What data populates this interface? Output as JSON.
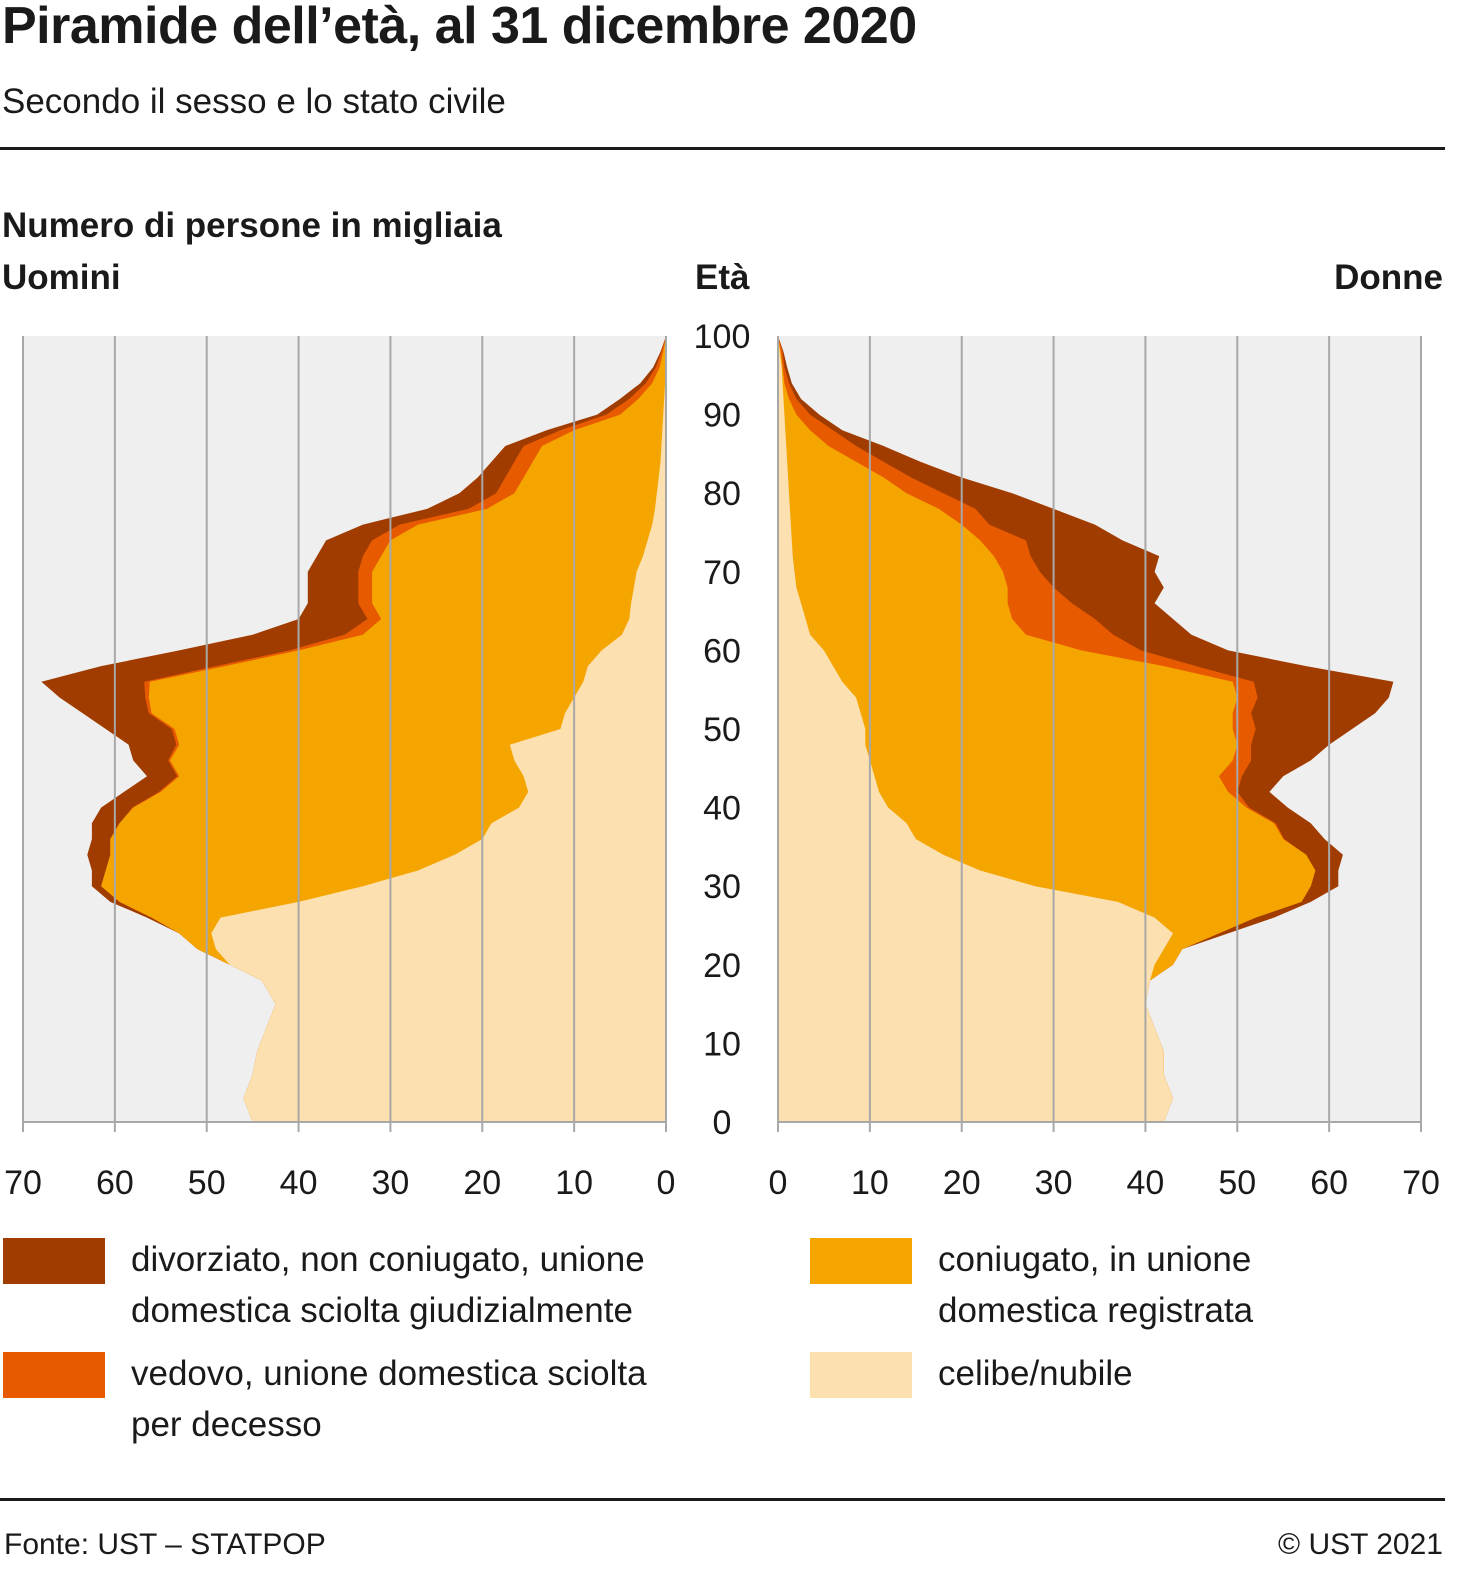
{
  "header": {
    "title": "Piramide dell’età, al 31 dicembre 2020",
    "subtitle": "Secondo il sesso e lo stato civile"
  },
  "labels": {
    "unit": "Numero di persone in migliaia",
    "left_side": "Uomini",
    "right_side": "Donne",
    "age_axis": "Età"
  },
  "footer": {
    "source": "Fonte: UST – STATPOP",
    "copyright": "© UST 2021"
  },
  "colors": {
    "divorced": "#a03c00",
    "widowed": "#e85a00",
    "married": "#f5a500",
    "single": "#fde0b0",
    "plot_bg": "#efefef",
    "grid": "#a8a8a8"
  },
  "legend": [
    {
      "key": "divorced",
      "label": "divorziato, non coniugato, unione domestica sciolta giudizialmente"
    },
    {
      "key": "widowed",
      "label": "vedovo, unione domestica sciolta per decesso"
    },
    {
      "key": "married",
      "label": "coniugato, in unione domestica registrata"
    },
    {
      "key": "single",
      "label": "celibe/nubile"
    }
  ],
  "chart_data": {
    "type": "area",
    "title": "Piramide dell’età, al 31 dicembre 2020",
    "subtitle": "Secondo il sesso e lo stato civile",
    "xlabel": "Numero di persone in migliaia",
    "ylabel": "Età",
    "xlim": [
      0,
      70
    ],
    "ylim": [
      0,
      100
    ],
    "x_ticks": [
      0,
      10,
      20,
      30,
      40,
      50,
      60,
      70
    ],
    "y_ticks": [
      0,
      10,
      20,
      30,
      40,
      50,
      60,
      70,
      80,
      90,
      100
    ],
    "ages": [
      0,
      3,
      6,
      9,
      12,
      15,
      18,
      20,
      22,
      24,
      26,
      28,
      30,
      32,
      34,
      36,
      38,
      40,
      42,
      44,
      46,
      48,
      50,
      52,
      54,
      56,
      58,
      60,
      62,
      64,
      66,
      68,
      70,
      72,
      74,
      76,
      78,
      80,
      82,
      84,
      86,
      88,
      90,
      92,
      94,
      96,
      98,
      100
    ],
    "series_order": [
      "single",
      "married",
      "widowed",
      "divorced"
    ],
    "panels": [
      {
        "name": "Uomini",
        "cumulative": {
          "single": [
            45,
            46,
            45,
            44.5,
            43.5,
            42.5,
            44,
            47.5,
            49,
            49.5,
            48.5,
            40,
            33,
            27,
            23,
            20,
            19,
            16,
            15,
            15.5,
            16.5,
            17,
            11.5,
            11,
            10,
            9,
            8.5,
            7,
            4.8,
            4,
            3.8,
            3.5,
            3.2,
            2.5,
            2,
            1.5,
            1.2,
            1,
            0.8,
            0.6,
            0.5,
            0.4,
            0.3,
            0.2,
            0.1,
            0.05,
            0.02,
            0
          ],
          "married": [
            45,
            46,
            45,
            44.5,
            43.5,
            42.5,
            44,
            47.5,
            51,
            53,
            56,
            59.5,
            61.5,
            61,
            60.5,
            60.5,
            59.5,
            58,
            55,
            53,
            54,
            53,
            53.5,
            56,
            56.3,
            56.2,
            48,
            40,
            33,
            31,
            32,
            32,
            32,
            31,
            30,
            27,
            19.5,
            16.5,
            15.5,
            14.5,
            13.5,
            10,
            5,
            3,
            1.5,
            0.7,
            0.3,
            0
          ],
          "widowed": [
            45,
            46,
            45,
            44.5,
            43.5,
            42.5,
            44,
            47.5,
            51,
            53,
            56,
            59.5,
            61.5,
            61,
            60.5,
            60.5,
            59.5,
            58.1,
            55.2,
            53.2,
            54.2,
            53.3,
            53.8,
            56.3,
            56.7,
            56.8,
            49,
            41,
            35,
            32.5,
            33.5,
            33.5,
            33.5,
            33,
            32,
            29,
            21.5,
            18.5,
            17.5,
            16.5,
            15.5,
            11.5,
            6.5,
            4,
            2.2,
            1.1,
            0.5,
            0
          ],
          "divorced": [
            45,
            46,
            45,
            44.5,
            43.5,
            42.5,
            44,
            47.5,
            51,
            53,
            56.5,
            60.5,
            62.5,
            62.5,
            63,
            62.5,
            62.5,
            61.5,
            59,
            56.5,
            58,
            58.5,
            61,
            63.5,
            66,
            68,
            61.5,
            53,
            45,
            40,
            39,
            39,
            39,
            38,
            37,
            33,
            26,
            22.5,
            20.5,
            19,
            17.5,
            13,
            7.5,
            5,
            2.8,
            1.4,
            0.6,
            0
          ]
        }
      },
      {
        "name": "Donne",
        "cumulative": {
          "single": [
            42,
            43,
            42,
            42,
            41,
            40,
            40.5,
            41,
            42,
            43,
            41,
            37,
            28,
            22,
            18,
            15,
            14,
            12,
            11,
            10.5,
            10,
            9.5,
            9.5,
            9,
            8.5,
            7,
            6,
            5,
            3.5,
            3,
            2.5,
            2,
            1.8,
            1.6,
            1.5,
            1.4,
            1.3,
            1.2,
            1.1,
            1,
            0.9,
            0.8,
            0.7,
            0.6,
            0.5,
            0.4,
            0.2,
            0
          ],
          "married": [
            42,
            43,
            42,
            42,
            41,
            40,
            40.5,
            43,
            44,
            48,
            52,
            57,
            58,
            58.5,
            57.5,
            55,
            54,
            51,
            49,
            48,
            49.5,
            50,
            49.5,
            49.5,
            50,
            49.5,
            42,
            33,
            27,
            25.5,
            25,
            25,
            24.5,
            23.5,
            22,
            20,
            17.5,
            14,
            11.5,
            8.5,
            5.5,
            3.5,
            2,
            1.2,
            0.7,
            0.5,
            0.3,
            0
          ],
          "widowed": [
            42,
            43,
            42,
            42,
            41,
            40,
            40.5,
            43,
            44,
            48,
            52,
            57,
            58,
            58.5,
            57.5,
            55.1,
            54.2,
            51.3,
            50,
            50.5,
            51.5,
            51.5,
            52,
            51.5,
            52.2,
            51.8,
            45.5,
            39.5,
            36.5,
            34.5,
            32,
            30,
            28.5,
            27.5,
            27,
            23,
            21.5,
            18,
            14.5,
            11.5,
            8.5,
            6,
            3.5,
            2,
            1.2,
            0.7,
            0.5,
            0
          ],
          "divorced": [
            42,
            43,
            42,
            42,
            41,
            40,
            40.5,
            43,
            44,
            49,
            54,
            58,
            61,
            61,
            61.5,
            59.5,
            58,
            55.5,
            53.5,
            55,
            58,
            60,
            62.5,
            65,
            66.5,
            67,
            57.5,
            49,
            45,
            43,
            41,
            42,
            41,
            41.5,
            37.5,
            34.5,
            30,
            25.5,
            20,
            15.5,
            11.5,
            7,
            4.5,
            2.5,
            1.5,
            1,
            0.6,
            0
          ]
        }
      }
    ]
  }
}
